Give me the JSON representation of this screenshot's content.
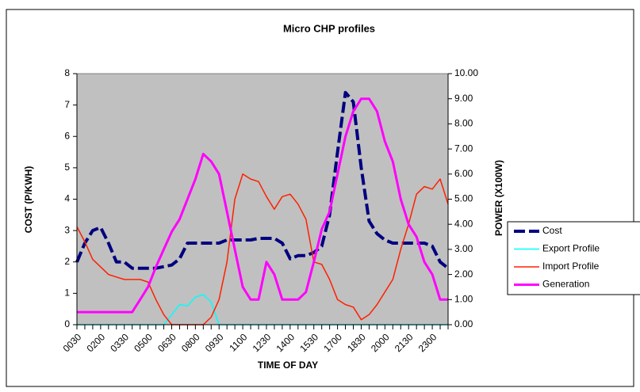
{
  "chart_data": {
    "type": "line",
    "title": "Micro CHP profiles",
    "xlabel": "TIME OF DAY",
    "ylabel": "COST (P/KWH)",
    "y2label": "POWER (X100W)",
    "categories": [
      "0030",
      null,
      null,
      "0200",
      null,
      null,
      "0330",
      null,
      null,
      "0500",
      null,
      null,
      "0630",
      null,
      null,
      "0800",
      null,
      null,
      "0930",
      null,
      null,
      "1100",
      null,
      null,
      "1230",
      null,
      null,
      "1400",
      null,
      null,
      "1530",
      null,
      null,
      "1700",
      null,
      null,
      "1830",
      null,
      null,
      "2000",
      null,
      null,
      "2130",
      null,
      null,
      "2300",
      null,
      null
    ],
    "ylim": [
      0,
      8
    ],
    "yticks": [
      0,
      1,
      2,
      3,
      4,
      5,
      6,
      7,
      8
    ],
    "y2lim": [
      0,
      10
    ],
    "y2ticks": [
      {
        "value": 0,
        "label": "0.00"
      },
      {
        "value": 1,
        "label": "1.00"
      },
      {
        "value": 2,
        "label": "2.00"
      },
      {
        "value": 3,
        "label": "3.00"
      },
      {
        "value": 4,
        "label": "4.00"
      },
      {
        "value": 5,
        "label": "5.00"
      },
      {
        "value": 6,
        "label": "6.00"
      },
      {
        "value": 7,
        "label": "7.00"
      },
      {
        "value": 8,
        "label": "8.00"
      },
      {
        "value": 9,
        "label": "9.00"
      },
      {
        "value": 10,
        "label": "10.00"
      }
    ],
    "grid": false,
    "legend": "right",
    "series": [
      {
        "name": "Cost",
        "color": "#000080",
        "axis": "y",
        "values": [
          2.0,
          2.6,
          3.0,
          3.1,
          2.6,
          2.0,
          2.0,
          1.8,
          1.8,
          1.8,
          1.8,
          1.85,
          1.9,
          2.1,
          2.6,
          2.6,
          2.6,
          2.6,
          2.6,
          2.7,
          2.7,
          2.7,
          2.7,
          2.75,
          2.75,
          2.75,
          2.6,
          2.1,
          2.2,
          2.2,
          2.3,
          2.5,
          3.5,
          5.5,
          7.4,
          7.1,
          5.0,
          3.3,
          2.9,
          2.7,
          2.6,
          2.6,
          2.6,
          2.6,
          2.6,
          2.5,
          2.0,
          1.8
        ]
      },
      {
        "name": "Export Profile",
        "color": "#00ffff",
        "axis": "y2",
        "values": [
          0,
          0,
          0,
          0,
          0,
          0,
          0,
          0,
          0,
          0,
          0,
          0,
          0.4,
          0.8,
          0.75,
          1.1,
          1.2,
          0.9,
          0,
          0,
          0,
          0,
          0,
          0,
          0,
          0,
          0,
          0,
          0,
          0,
          0,
          0,
          0,
          0,
          0,
          0,
          0,
          0,
          0,
          0,
          0,
          0,
          0,
          0,
          0,
          0,
          0,
          0
        ]
      },
      {
        "name": "Import Profile",
        "color": "#ff2000",
        "axis": "y2",
        "values": [
          3.9,
          3.3,
          2.6,
          2.3,
          2.0,
          1.9,
          1.8,
          1.8,
          1.8,
          1.7,
          1.0,
          0.4,
          0,
          0,
          0,
          0,
          0,
          0.3,
          1.0,
          2.5,
          5.0,
          6.0,
          5.8,
          5.7,
          5.1,
          4.6,
          5.1,
          5.2,
          4.8,
          4.2,
          2.5,
          2.4,
          1.8,
          1.0,
          0.8,
          0.7,
          0.2,
          0.4,
          0.8,
          1.3,
          1.8,
          3.0,
          4.0,
          5.2,
          5.5,
          5.4,
          5.8,
          4.8
        ]
      },
      {
        "name": "Generation",
        "color": "#ff00ff",
        "axis": "y2",
        "values": [
          0.5,
          0.5,
          0.5,
          0.5,
          0.5,
          0.5,
          0.5,
          0.5,
          1.0,
          1.5,
          2.3,
          3.0,
          3.7,
          4.2,
          5.0,
          5.8,
          6.8,
          6.5,
          6.0,
          4.5,
          3.0,
          1.5,
          1.0,
          1.0,
          2.5,
          2.0,
          1.0,
          1.0,
          1.0,
          1.3,
          2.5,
          3.8,
          4.5,
          6.0,
          7.5,
          8.5,
          9.0,
          9.0,
          8.5,
          7.3,
          6.5,
          5.0,
          4.0,
          3.5,
          2.5,
          2.0,
          1.0,
          1.0
        ]
      }
    ]
  }
}
